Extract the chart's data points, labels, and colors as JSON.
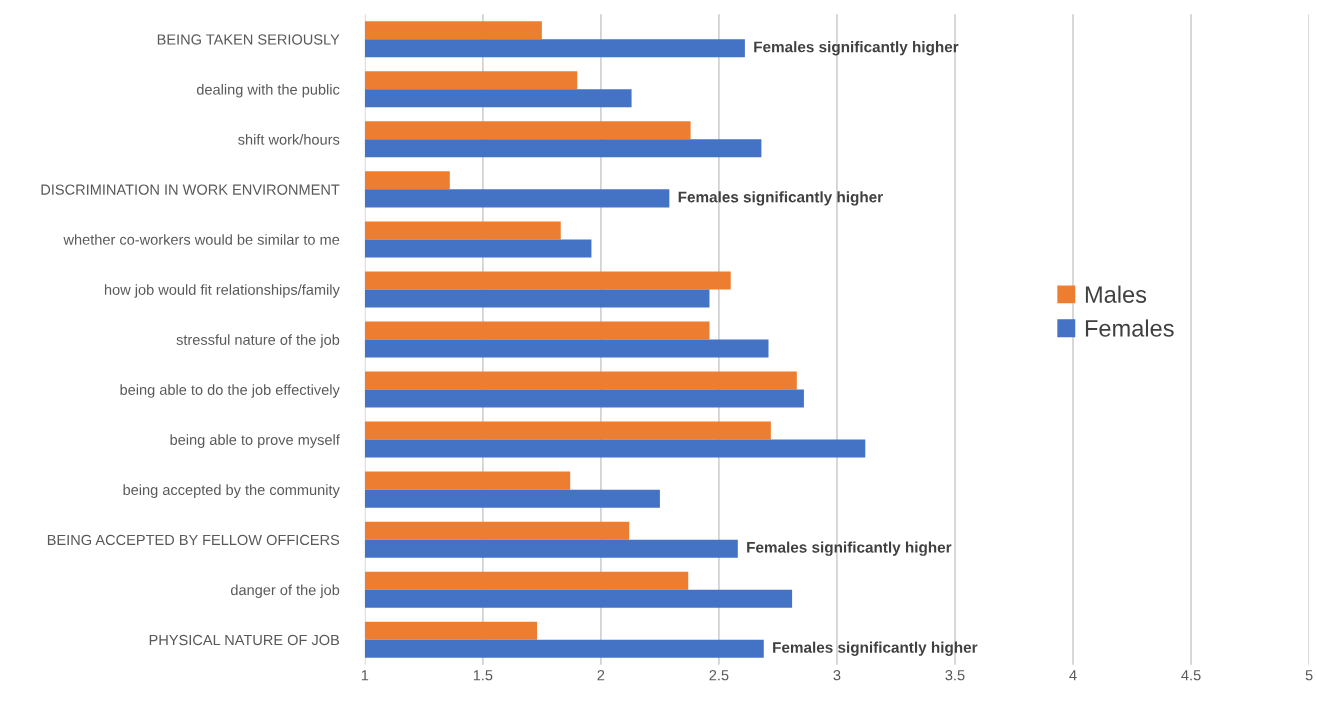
{
  "chart_data": {
    "type": "bar",
    "orientation": "horizontal",
    "categories": [
      "BEING TAKEN SERIOUSLY",
      "dealing with the public",
      "shift work/hours",
      "DISCRIMINATION IN WORK ENVIRONMENT",
      "whether co-workers would be similar to me",
      "how job would fit relationships/family",
      "stressful nature of the job",
      "being able to do the job effectively",
      "being able to prove myself",
      "being accepted by the community",
      "BEING ACCEPTED BY FELLOW OFFICERS",
      "danger of the job",
      "PHYSICAL NATURE OF JOB"
    ],
    "series": [
      {
        "name": "Males",
        "color": "#ed7d31",
        "values": [
          1.75,
          1.9,
          2.38,
          1.36,
          1.83,
          2.55,
          2.46,
          2.83,
          2.72,
          1.87,
          2.12,
          2.37,
          1.73
        ]
      },
      {
        "name": "Females",
        "color": "#4472c4",
        "values": [
          2.61,
          2.13,
          2.68,
          2.29,
          1.96,
          2.46,
          2.71,
          2.86,
          3.12,
          2.25,
          2.58,
          2.81,
          2.69
        ]
      }
    ],
    "xlim": [
      1,
      5
    ],
    "xticks": [
      1,
      1.5,
      2,
      2.5,
      3,
      3.5,
      4,
      4.5,
      5
    ],
    "grid": "x",
    "legend": "right",
    "annotations": [
      {
        "text": "Females significantly higher",
        "x": 2.61,
        "y": "BEING TAKEN SERIOUSLY"
      },
      {
        "text": "Females significantly higher",
        "x": 2.29,
        "y": "DISCRIMINATION IN WORK ENVIRONMENT"
      },
      {
        "text": "Females significantly higher",
        "x": 2.58,
        "y": "BEING ACCEPTED BY FELLOW OFFICERS"
      },
      {
        "text": "Females significantly higher",
        "x": 2.69,
        "y": "PHYSICAL NATURE OF JOB"
      }
    ]
  }
}
